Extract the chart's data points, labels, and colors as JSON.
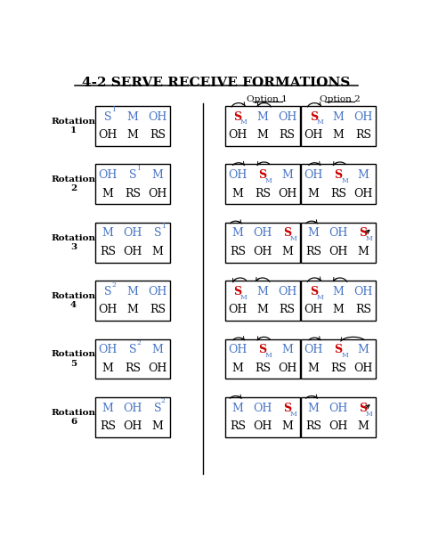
{
  "title": "4-2 SERVE RECEIVE FORMATIONS",
  "bg_color": "#ffffff",
  "blue_color": "#4472C4",
  "red_color": "#CC0000",
  "black_color": "#000000",
  "rotations": [
    {
      "label": "Rotation\n1",
      "base_row1": [
        [
          "S",
          "1",
          "blue"
        ],
        [
          "M",
          "",
          "blue"
        ],
        [
          "OH",
          "",
          "blue"
        ]
      ],
      "base_row2": [
        [
          "OH",
          "",
          "black"
        ],
        [
          "M",
          "",
          "black"
        ],
        [
          "RS",
          "",
          "black"
        ]
      ]
    },
    {
      "label": "Rotation\n2",
      "base_row1": [
        [
          "OH",
          "",
          "blue"
        ],
        [
          "S",
          "1",
          "blue"
        ],
        [
          "M",
          "",
          "blue"
        ]
      ],
      "base_row2": [
        [
          "M",
          "",
          "black"
        ],
        [
          "RS",
          "",
          "black"
        ],
        [
          "OH",
          "",
          "black"
        ]
      ]
    },
    {
      "label": "Rotation\n3",
      "base_row1": [
        [
          "M",
          "",
          "blue"
        ],
        [
          "OH",
          "",
          "blue"
        ],
        [
          "S",
          "1",
          "blue"
        ]
      ],
      "base_row2": [
        [
          "RS",
          "",
          "black"
        ],
        [
          "OH",
          "",
          "black"
        ],
        [
          "M",
          "",
          "black"
        ]
      ]
    },
    {
      "label": "Rotation\n4",
      "base_row1": [
        [
          "S",
          "2",
          "blue"
        ],
        [
          "M",
          "",
          "blue"
        ],
        [
          "OH",
          "",
          "blue"
        ]
      ],
      "base_row2": [
        [
          "OH",
          "",
          "black"
        ],
        [
          "M",
          "",
          "black"
        ],
        [
          "RS",
          "",
          "black"
        ]
      ]
    },
    {
      "label": "Rotation\n5",
      "base_row1": [
        [
          "OH",
          "",
          "blue"
        ],
        [
          "S",
          "2",
          "blue"
        ],
        [
          "M",
          "",
          "blue"
        ]
      ],
      "base_row2": [
        [
          "M",
          "",
          "black"
        ],
        [
          "RS",
          "",
          "black"
        ],
        [
          "OH",
          "",
          "black"
        ]
      ]
    },
    {
      "label": "Rotation\n6",
      "base_row1": [
        [
          "M",
          "",
          "blue"
        ],
        [
          "OH",
          "",
          "blue"
        ],
        [
          "S",
          "2",
          "blue"
        ]
      ],
      "base_row2": [
        [
          "RS",
          "",
          "black"
        ],
        [
          "OH",
          "",
          "black"
        ],
        [
          "M",
          "",
          "black"
        ]
      ]
    }
  ]
}
